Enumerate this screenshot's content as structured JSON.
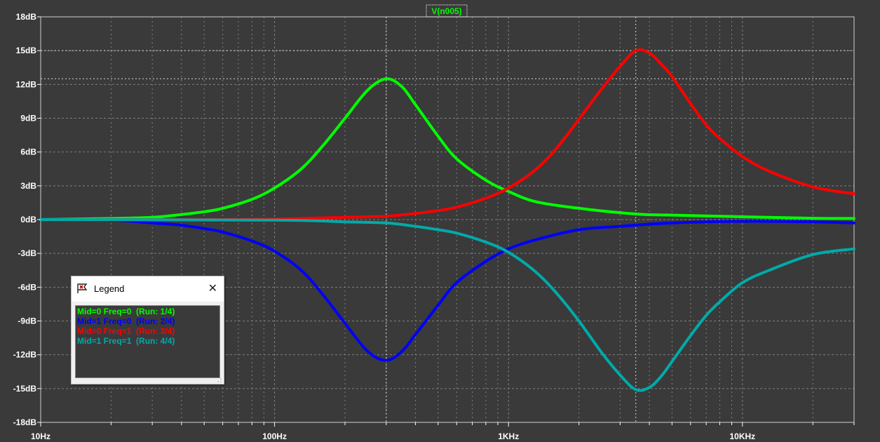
{
  "trace_title": "V(n005)",
  "legend": {
    "title": "Legend",
    "close_glyph": "✕",
    "icon": "legend-flag-icon",
    "entries": [
      {
        "label": "Mid=0 Freq=0  (Run: 1/4)",
        "color": "#00ff00"
      },
      {
        "label": "Mid=1 Freq=0  (Run: 2/4)",
        "color": "#0000ff"
      },
      {
        "label": "Mid=0 Freq=1  (Run: 3/4)",
        "color": "#ff0000"
      },
      {
        "label": "Mid=1 Freq=1  (Run: 4/4)",
        "color": "#00aaaa"
      }
    ]
  },
  "colors": {
    "background": "#3a3a3a",
    "grid": "#808080",
    "axis_text": "#ffffff",
    "trace_title": "#00ff00"
  },
  "chart_data": {
    "type": "line",
    "xscale": "log",
    "xlim": [
      10,
      30000
    ],
    "ylim": [
      -18,
      18
    ],
    "x_ticks": [
      {
        "value": 10,
        "label": "10Hz"
      },
      {
        "value": 100,
        "label": "100Hz"
      },
      {
        "value": 1000,
        "label": "1KHz"
      },
      {
        "value": 10000,
        "label": "10KHz"
      }
    ],
    "y_ticks": [
      {
        "value": 18,
        "label": "18dB"
      },
      {
        "value": 15,
        "label": "15dB"
      },
      {
        "value": 12,
        "label": "12dB"
      },
      {
        "value": 9,
        "label": "9dB"
      },
      {
        "value": 6,
        "label": "6dB"
      },
      {
        "value": 3,
        "label": "3dB"
      },
      {
        "value": 0,
        "label": "0dB"
      },
      {
        "value": -3,
        "label": "-3dB"
      },
      {
        "value": -6,
        "label": "-6dB"
      },
      {
        "value": -9,
        "label": "-9dB"
      },
      {
        "value": -12,
        "label": "-12dB"
      },
      {
        "value": -15,
        "label": "-15dB"
      },
      {
        "value": -18,
        "label": "-18dB"
      }
    ],
    "series": [
      {
        "name": "Mid=0 Freq=0  (Run: 1/4)",
        "color": "#00ff00",
        "points": [
          [
            10,
            0
          ],
          [
            20,
            0.1
          ],
          [
            30,
            0.2
          ],
          [
            40,
            0.45
          ],
          [
            50,
            0.7
          ],
          [
            60,
            1.0
          ],
          [
            80,
            1.8
          ],
          [
            100,
            2.8
          ],
          [
            130,
            4.5
          ],
          [
            160,
            6.5
          ],
          [
            200,
            9.0
          ],
          [
            250,
            11.5
          ],
          [
            300,
            12.5
          ],
          [
            350,
            11.8
          ],
          [
            400,
            10.2
          ],
          [
            500,
            7.4
          ],
          [
            600,
            5.4
          ],
          [
            800,
            3.5
          ],
          [
            1000,
            2.5
          ],
          [
            1300,
            1.6
          ],
          [
            2000,
            1.0
          ],
          [
            3500,
            0.5
          ],
          [
            5000,
            0.4
          ],
          [
            10000,
            0.25
          ],
          [
            20000,
            0.12
          ],
          [
            30000,
            0.1
          ]
        ]
      },
      {
        "name": "Mid=1 Freq=0  (Run: 2/4)",
        "color": "#0000ff",
        "points": [
          [
            10,
            0
          ],
          [
            20,
            -0.05
          ],
          [
            30,
            -0.3
          ],
          [
            40,
            -0.5
          ],
          [
            50,
            -0.8
          ],
          [
            60,
            -1.1
          ],
          [
            80,
            -1.9
          ],
          [
            100,
            -2.8
          ],
          [
            130,
            -4.5
          ],
          [
            160,
            -6.6
          ],
          [
            200,
            -9.2
          ],
          [
            250,
            -11.7
          ],
          [
            300,
            -12.5
          ],
          [
            350,
            -11.7
          ],
          [
            400,
            -10.2
          ],
          [
            500,
            -7.6
          ],
          [
            600,
            -5.6
          ],
          [
            800,
            -3.7
          ],
          [
            1000,
            -2.6
          ],
          [
            1300,
            -1.8
          ],
          [
            2000,
            -0.9
          ],
          [
            3000,
            -0.6
          ],
          [
            5000,
            -0.3
          ],
          [
            10000,
            -0.15
          ],
          [
            20000,
            -0.2
          ],
          [
            30000,
            -0.3
          ]
        ]
      },
      {
        "name": "Mid=0 Freq=1  (Run: 3/4)",
        "color": "#ff0000",
        "points": [
          [
            10,
            0
          ],
          [
            50,
            0
          ],
          [
            100,
            0.05
          ],
          [
            200,
            0.2
          ],
          [
            300,
            0.3
          ],
          [
            400,
            0.55
          ],
          [
            500,
            0.8
          ],
          [
            600,
            1.1
          ],
          [
            800,
            1.9
          ],
          [
            1000,
            2.8
          ],
          [
            1300,
            4.4
          ],
          [
            1600,
            6.3
          ],
          [
            2000,
            8.9
          ],
          [
            2500,
            11.6
          ],
          [
            3000,
            13.6
          ],
          [
            3500,
            15.0
          ],
          [
            4000,
            14.8
          ],
          [
            4500,
            13.8
          ],
          [
            5000,
            12.7
          ],
          [
            6000,
            10.3
          ],
          [
            7000,
            8.4
          ],
          [
            8000,
            7.2
          ],
          [
            10000,
            5.6
          ],
          [
            13000,
            4.3
          ],
          [
            20000,
            2.9
          ],
          [
            30000,
            2.3
          ]
        ]
      },
      {
        "name": "Mid=1 Freq=1  (Run: 4/4)",
        "color": "#00aaaa",
        "points": [
          [
            10,
            0
          ],
          [
            100,
            -0.05
          ],
          [
            200,
            -0.2
          ],
          [
            300,
            -0.3
          ],
          [
            400,
            -0.6
          ],
          [
            500,
            -0.9
          ],
          [
            600,
            -1.2
          ],
          [
            800,
            -2.0
          ],
          [
            1000,
            -2.9
          ],
          [
            1300,
            -4.6
          ],
          [
            1600,
            -6.5
          ],
          [
            2000,
            -9.0
          ],
          [
            2500,
            -11.8
          ],
          [
            3000,
            -13.8
          ],
          [
            3500,
            -15.1
          ],
          [
            4000,
            -14.9
          ],
          [
            4500,
            -13.9
          ],
          [
            5000,
            -12.6
          ],
          [
            6000,
            -10.3
          ],
          [
            7000,
            -8.5
          ],
          [
            8000,
            -7.3
          ],
          [
            10000,
            -5.6
          ],
          [
            13000,
            -4.5
          ],
          [
            20000,
            -3.1
          ],
          [
            30000,
            -2.6
          ]
        ]
      }
    ]
  }
}
